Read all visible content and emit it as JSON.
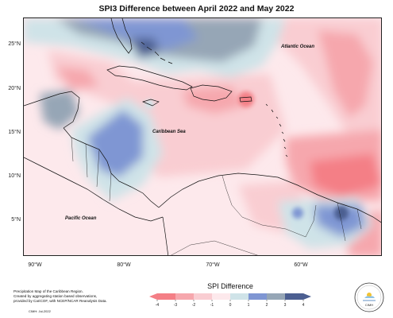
{
  "title": "SPI3 Difference between April 2022 and May 2022",
  "axes": {
    "lat_labels": [
      "25°N",
      "20°N",
      "15°N",
      "10°N",
      "5°N"
    ],
    "lon_labels": [
      "90°W",
      "80°W",
      "70°W",
      "60°W"
    ]
  },
  "labels": {
    "atlantic": "Atlantic Ocean",
    "caribbean": "Caribbean Sea",
    "pacific": "Pacific Ocean"
  },
  "legend": {
    "title": "SPI Difference",
    "ticks": [
      "-4",
      "-3",
      "-2",
      "-1",
      "0",
      "1",
      "2",
      "3",
      "4"
    ],
    "colors": [
      "#f47f86",
      "#f6a7ad",
      "#f9cdd2",
      "#fde9ec",
      "#cfe3e8",
      "#7f96d3",
      "#96a6b6",
      "#4c5f91"
    ]
  },
  "credits": {
    "line1": "Precipitation Map of the Caribbean Region.",
    "line2": "Created by aggregating station based observations,",
    "line3": "provided by CariCOF, with NCEP/NCAR Reanalysis Data.",
    "date": "CIMH: Jul-2022"
  },
  "logo": {
    "text": "CIMH"
  }
}
